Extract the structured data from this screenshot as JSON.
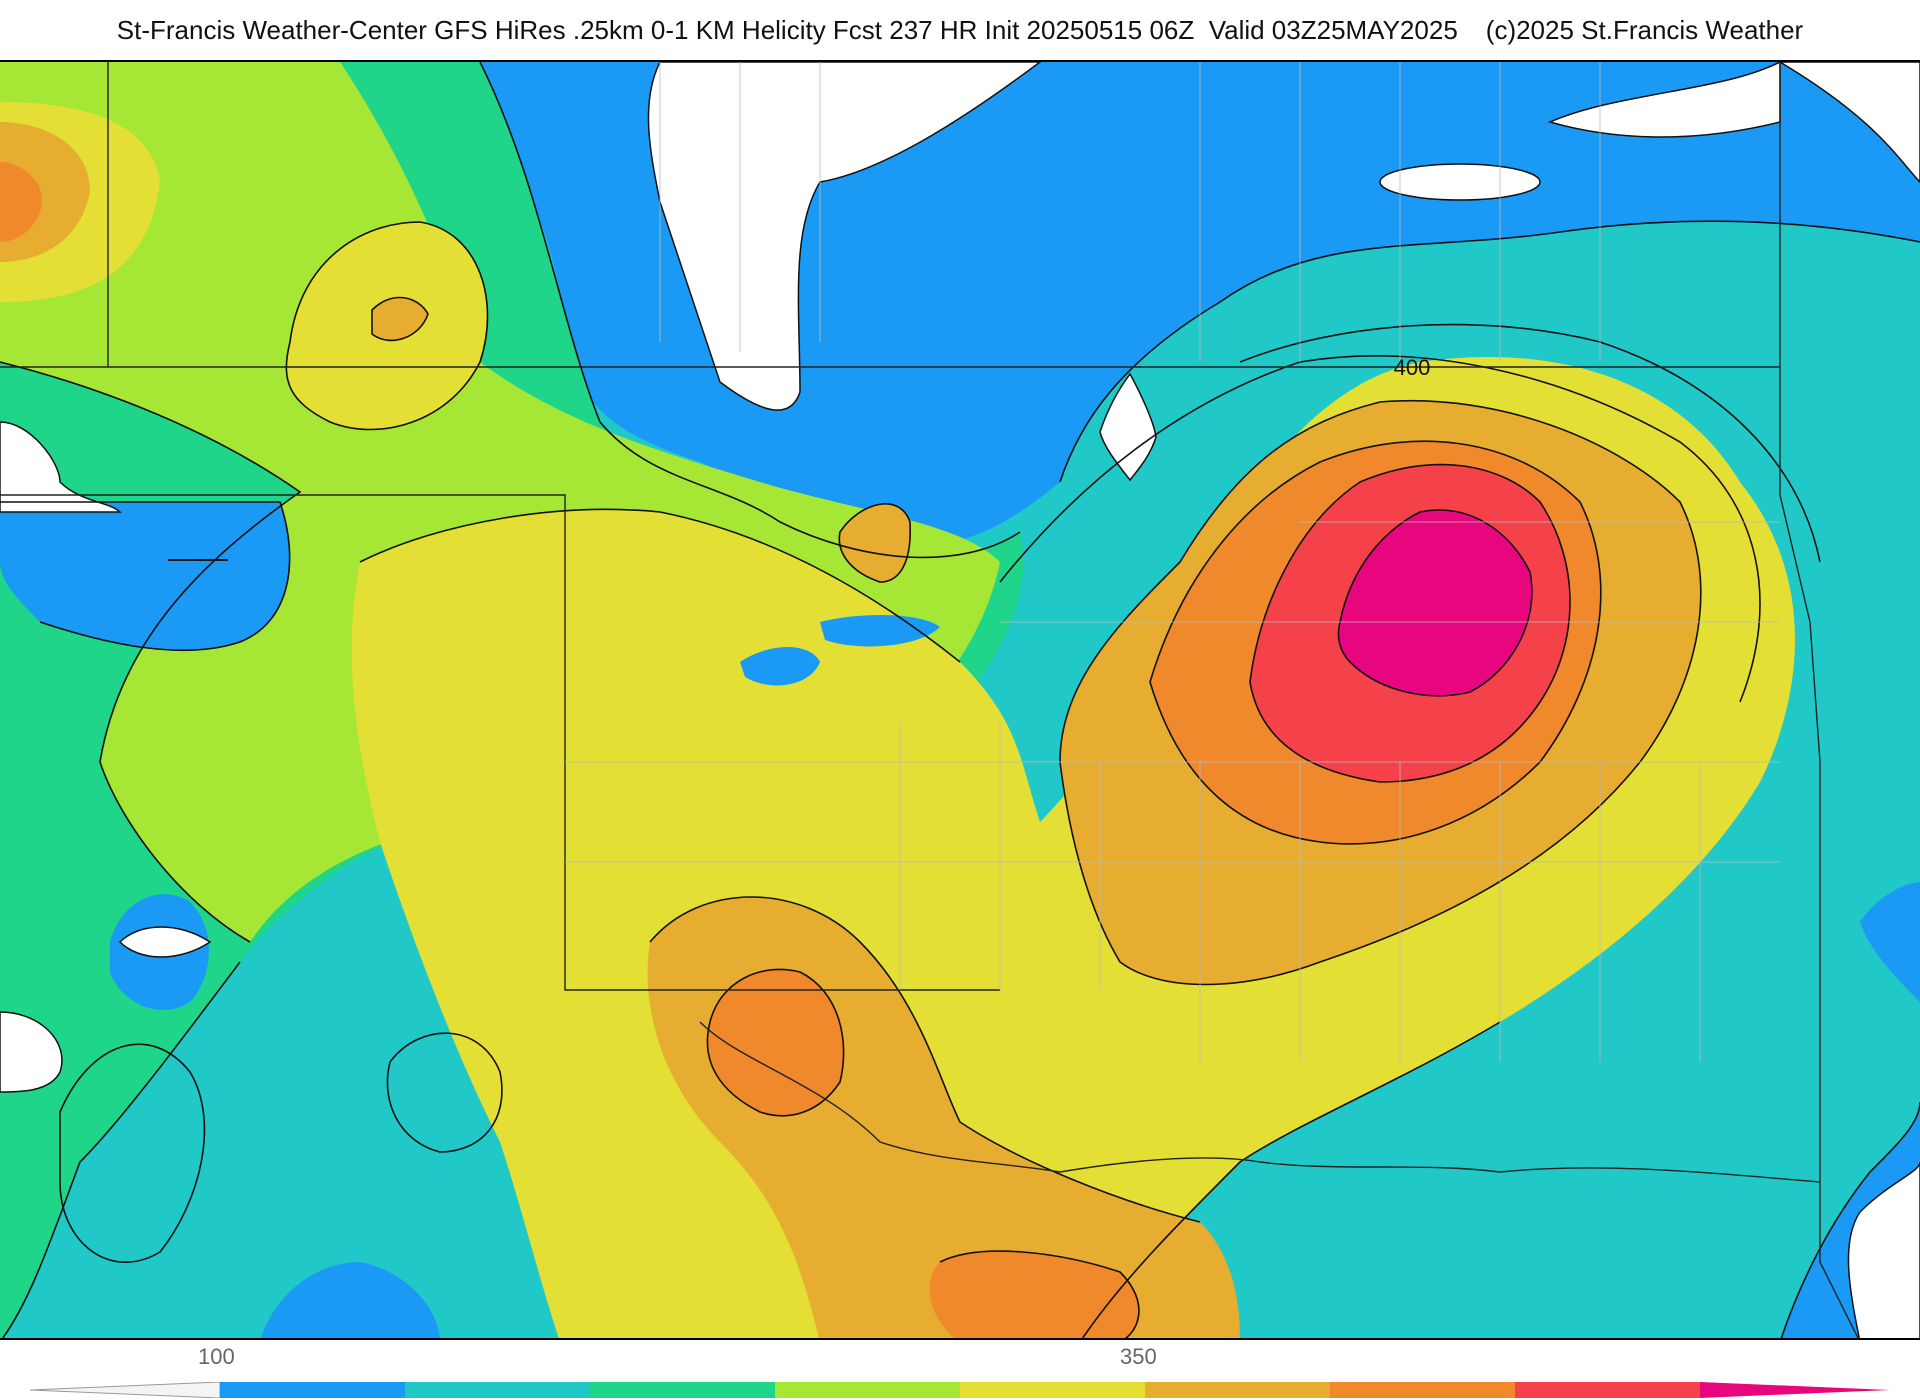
{
  "header": {
    "title": "St-Francis Weather-Center GFS HiRes .25km 0-1 KM Helicity Fcst 237 HR Init 20250515 06Z  Valid 03Z25MAY2025",
    "copyright": "(c)2025 St.Francis Weather"
  },
  "map": {
    "contour_labels": [
      "400"
    ]
  },
  "legend": {
    "tick_labels": [
      "100",
      "350"
    ],
    "colors": [
      "#1a9af5",
      "#20c8c8",
      "#1fd58a",
      "#a6e634",
      "#e4df35",
      "#e6ad30",
      "#f0882c",
      "#f5424a",
      "#e8067f"
    ]
  }
}
